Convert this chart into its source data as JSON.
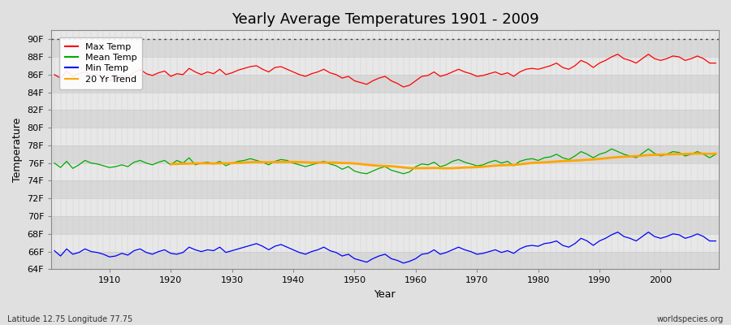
{
  "title": "Yearly Average Temperatures 1901 - 2009",
  "xlabel": "Year",
  "ylabel": "Temperature",
  "subtitle_left": "Latitude 12.75 Longitude 77.75",
  "subtitle_right": "worldspecies.org",
  "years": [
    1901,
    1902,
    1903,
    1904,
    1905,
    1906,
    1907,
    1908,
    1909,
    1910,
    1911,
    1912,
    1913,
    1914,
    1915,
    1916,
    1917,
    1918,
    1919,
    1920,
    1921,
    1922,
    1923,
    1924,
    1925,
    1926,
    1927,
    1928,
    1929,
    1930,
    1931,
    1932,
    1933,
    1934,
    1935,
    1936,
    1937,
    1938,
    1939,
    1940,
    1941,
    1942,
    1943,
    1944,
    1945,
    1946,
    1947,
    1948,
    1949,
    1950,
    1951,
    1952,
    1953,
    1954,
    1955,
    1956,
    1957,
    1958,
    1959,
    1960,
    1961,
    1962,
    1963,
    1964,
    1965,
    1966,
    1967,
    1968,
    1969,
    1970,
    1971,
    1972,
    1973,
    1974,
    1975,
    1976,
    1977,
    1978,
    1979,
    1980,
    1981,
    1982,
    1983,
    1984,
    1985,
    1986,
    1987,
    1988,
    1989,
    1990,
    1991,
    1992,
    1993,
    1994,
    1995,
    1996,
    1997,
    1998,
    1999,
    2000,
    2001,
    2002,
    2003,
    2004,
    2005,
    2006,
    2007,
    2008,
    2009
  ],
  "max_temp": [
    86.0,
    85.6,
    86.4,
    85.8,
    86.1,
    86.3,
    85.9,
    86.0,
    85.7,
    85.3,
    85.6,
    85.9,
    85.7,
    86.2,
    86.6,
    86.1,
    85.9,
    86.2,
    86.4,
    85.8,
    86.1,
    86.0,
    86.7,
    86.3,
    86.0,
    86.3,
    86.1,
    86.6,
    86.0,
    86.2,
    86.5,
    86.7,
    86.9,
    87.0,
    86.6,
    86.3,
    86.8,
    86.9,
    86.6,
    86.3,
    86.0,
    85.8,
    86.1,
    86.3,
    86.6,
    86.2,
    86.0,
    85.6,
    85.8,
    85.3,
    85.1,
    84.9,
    85.3,
    85.6,
    85.8,
    85.3,
    85.0,
    84.6,
    84.8,
    85.3,
    85.8,
    85.9,
    86.3,
    85.8,
    86.0,
    86.3,
    86.6,
    86.3,
    86.1,
    85.8,
    85.9,
    86.1,
    86.3,
    86.0,
    86.2,
    85.8,
    86.3,
    86.6,
    86.7,
    86.6,
    86.8,
    87.0,
    87.3,
    86.8,
    86.6,
    87.0,
    87.6,
    87.3,
    86.8,
    87.3,
    87.6,
    88.0,
    88.3,
    87.8,
    87.6,
    87.3,
    87.8,
    88.3,
    87.8,
    87.6,
    87.8,
    88.1,
    88.0,
    87.6,
    87.8,
    88.1,
    87.8,
    87.3,
    87.3
  ],
  "mean_temp": [
    76.0,
    75.5,
    76.2,
    75.4,
    75.8,
    76.3,
    76.0,
    75.9,
    75.7,
    75.5,
    75.6,
    75.8,
    75.6,
    76.1,
    76.3,
    76.0,
    75.8,
    76.1,
    76.3,
    75.8,
    76.3,
    76.0,
    76.6,
    75.8,
    76.0,
    76.1,
    75.9,
    76.2,
    75.7,
    76.0,
    76.2,
    76.3,
    76.5,
    76.3,
    76.1,
    75.8,
    76.2,
    76.4,
    76.3,
    76.0,
    75.8,
    75.6,
    75.8,
    76.0,
    76.2,
    75.9,
    75.7,
    75.3,
    75.6,
    75.1,
    74.9,
    74.8,
    75.1,
    75.4,
    75.6,
    75.2,
    75.0,
    74.8,
    75.0,
    75.6,
    75.9,
    75.8,
    76.1,
    75.6,
    75.8,
    76.2,
    76.4,
    76.1,
    75.9,
    75.7,
    75.8,
    76.1,
    76.3,
    76.0,
    76.2,
    75.7,
    76.2,
    76.4,
    76.5,
    76.3,
    76.6,
    76.7,
    77.0,
    76.6,
    76.4,
    76.8,
    77.3,
    77.0,
    76.6,
    77.0,
    77.2,
    77.6,
    77.3,
    77.0,
    76.8,
    76.6,
    77.1,
    77.6,
    77.1,
    76.8,
    77.0,
    77.3,
    77.2,
    76.8,
    77.0,
    77.3,
    77.0,
    76.6,
    77.0
  ],
  "min_temp": [
    66.1,
    65.5,
    66.3,
    65.7,
    65.9,
    66.3,
    66.0,
    65.9,
    65.7,
    65.4,
    65.5,
    65.8,
    65.6,
    66.1,
    66.3,
    65.9,
    65.7,
    66.0,
    66.2,
    65.8,
    65.7,
    65.9,
    66.5,
    66.2,
    66.0,
    66.2,
    66.1,
    66.5,
    65.9,
    66.1,
    66.3,
    66.5,
    66.7,
    66.9,
    66.6,
    66.2,
    66.6,
    66.8,
    66.5,
    66.2,
    65.9,
    65.7,
    66.0,
    66.2,
    66.5,
    66.1,
    65.9,
    65.5,
    65.7,
    65.2,
    65.0,
    64.8,
    65.2,
    65.5,
    65.7,
    65.2,
    65.0,
    64.7,
    64.9,
    65.2,
    65.7,
    65.8,
    66.2,
    65.7,
    65.9,
    66.2,
    66.5,
    66.2,
    66.0,
    65.7,
    65.8,
    66.0,
    66.2,
    65.9,
    66.1,
    65.8,
    66.3,
    66.6,
    66.7,
    66.6,
    66.9,
    67.0,
    67.2,
    66.7,
    66.5,
    66.9,
    67.5,
    67.2,
    66.7,
    67.2,
    67.5,
    67.9,
    68.2,
    67.7,
    67.5,
    67.2,
    67.7,
    68.2,
    67.7,
    67.5,
    67.7,
    68.0,
    67.9,
    67.5,
    67.7,
    68.0,
    67.7,
    67.2,
    67.2
  ],
  "ylim": [
    64,
    91
  ],
  "yticks": [
    64,
    66,
    68,
    70,
    72,
    74,
    76,
    78,
    80,
    82,
    84,
    86,
    88,
    90
  ],
  "ytick_labels": [
    "64F",
    "66F",
    "68F",
    "70F",
    "72F",
    "74F",
    "76F",
    "78F",
    "80F",
    "82F",
    "84F",
    "86F",
    "88F",
    "90F"
  ],
  "xticks": [
    1910,
    1920,
    1930,
    1940,
    1950,
    1960,
    1970,
    1980,
    1990,
    2000
  ],
  "max_color": "#ff0000",
  "mean_color": "#00aa00",
  "min_color": "#0000ff",
  "trend_color": "#ffa500",
  "fig_bg_color": "#e0e0e0",
  "plot_bg_color": "#e8e8e8",
  "band_color_light": "#e8e8e8",
  "band_color_dark": "#d8d8d8",
  "grid_color": "#cccccc",
  "vgrid_color": "#cccccc",
  "dotted_line_y": 90,
  "trend_window": 20,
  "title_fontsize": 13,
  "legend_entries": [
    "Max Temp",
    "Mean Temp",
    "Min Temp",
    "20 Yr Trend"
  ]
}
